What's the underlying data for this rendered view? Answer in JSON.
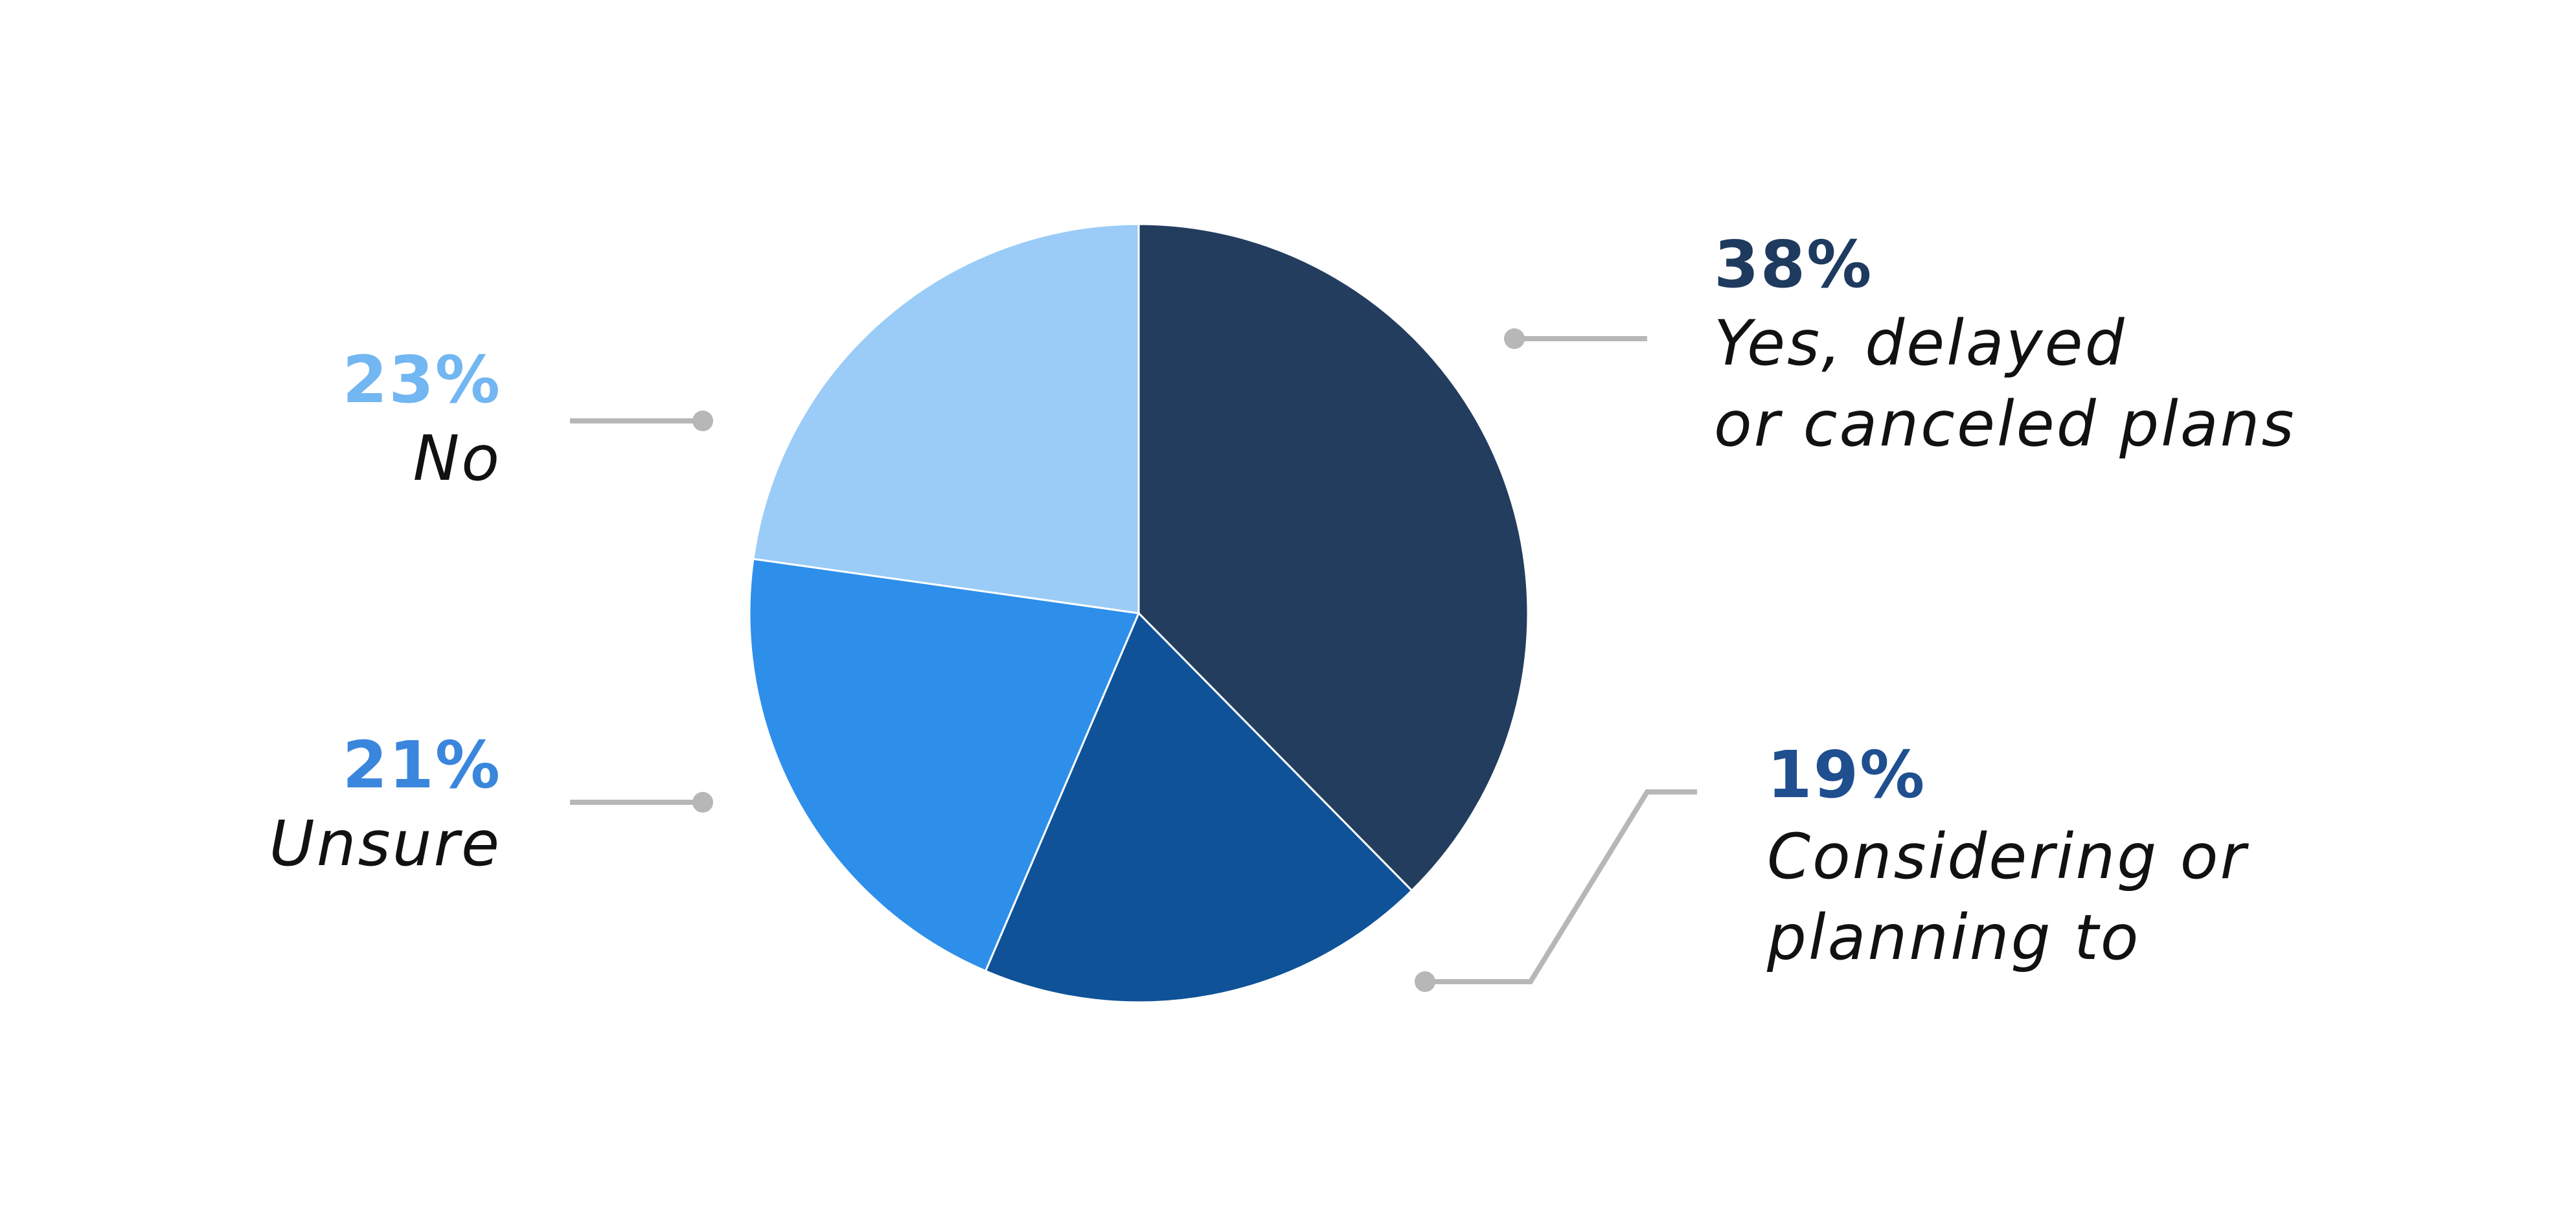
{
  "chart_data": {
    "type": "pie",
    "title": "",
    "start_angle_deg": 0,
    "direction": "clockwise",
    "slices": [
      {
        "key": "yes",
        "label_lines": [
          "Yes, delayed",
          "or canceled plans"
        ],
        "percent_label": "38%",
        "value": 38,
        "color": "#233d5e",
        "label_color": "#1f3a5f"
      },
      {
        "key": "considering",
        "label_lines": [
          "Considering or",
          "planning to"
        ],
        "percent_label": "19%",
        "value": 19,
        "color": "#0f5298",
        "label_color": "#1f4f8f"
      },
      {
        "key": "unsure",
        "label_lines": [
          "Unsure"
        ],
        "percent_label": "21%",
        "value": 21,
        "color": "#2d8fea",
        "label_color": "#3a86dd"
      },
      {
        "key": "no",
        "label_lines": [
          "No"
        ],
        "percent_label": "23%",
        "value": 23,
        "color": "#9accf7",
        "label_color": "#72b6f2"
      }
    ],
    "colors": {
      "leader_line": "#b7b7b7",
      "label_text": "#111111"
    }
  }
}
